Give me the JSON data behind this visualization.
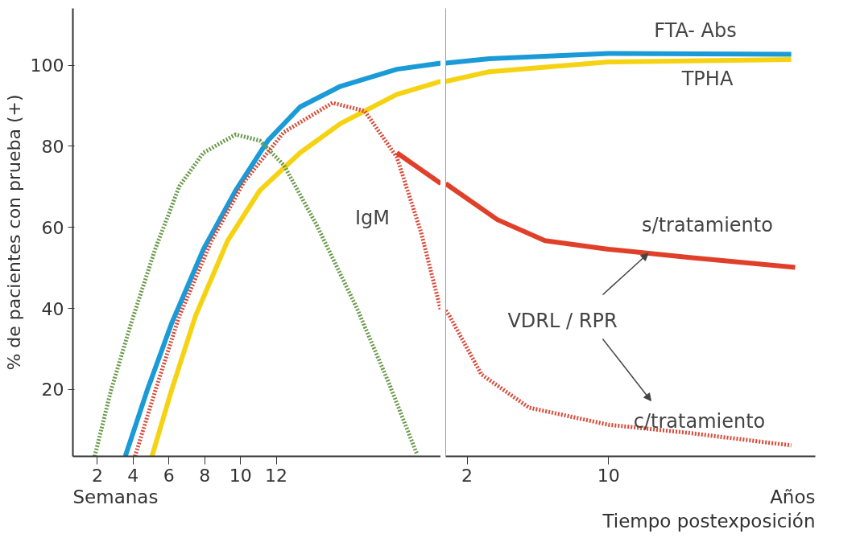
{
  "chart_data": [
    {
      "type": "line",
      "ylabel": "% de pacientes con prueba (+)",
      "xlim": [
        0.63,
        21.2
      ],
      "ylim": [
        3.5,
        114
      ],
      "xticks": [
        2,
        4,
        6,
        8,
        10,
        12
      ],
      "yticks": [
        20,
        40,
        60,
        80,
        100
      ],
      "series": [
        {
          "color": "#1a9bd7",
          "line_style": "solid",
          "x": [
            3.56,
            4.77,
            6.13,
            7.93,
            9.73,
            11.53,
            13.33,
            15.59,
            18.74,
            21.2
          ],
          "values": [
            3.5,
            19.6,
            36.1,
            54.6,
            69.1,
            81.4,
            89.7,
            94.8,
            99.0,
            100.5
          ]
        },
        {
          "color": "#f5d312",
          "line_style": "solid",
          "x": [
            5.05,
            6.13,
            7.48,
            9.28,
            11.08,
            13.33,
            15.59,
            18.74,
            21.2
          ],
          "values": [
            3.5,
            19.6,
            38.1,
            56.7,
            69.1,
            78.4,
            85.6,
            92.8,
            96.0
          ]
        },
        {
          "color": "#6a9a4a",
          "line_style": "dotted",
          "x": [
            1.85,
            2.75,
            3.87,
            5.23,
            6.58,
            7.93,
            9.73,
            11.08,
            12.43,
            14.23,
            16.49,
            18.29,
            19.86
          ],
          "values": [
            3.5,
            19.6,
            36.1,
            54.6,
            70.1,
            78.4,
            82.9,
            81.4,
            75.3,
            60.8,
            40.2,
            21.6,
            4.1
          ]
        },
        {
          "color": "#d94a3a",
          "line_style": "dotted",
          "x": [
            4.1,
            5.23,
            6.58,
            8.38,
            10.18,
            12.43,
            15.14,
            16.94,
            18.74,
            20.09,
            21.2
          ],
          "values": [
            3.5,
            19.6,
            38.1,
            56.7,
            71.1,
            83.5,
            90.7,
            88.7,
            77.3,
            58.8,
            39.5
          ]
        },
        {
          "color": "#e0402a",
          "line_style": "solid",
          "x": [
            18.74,
            21.2
          ],
          "values": [
            78.4,
            70.8
          ]
        }
      ],
      "annotations": [
        "IgM",
        "Semanas"
      ]
    },
    {
      "type": "line",
      "xlabel": "Tiempo postexposición",
      "xlim": [
        0.79,
        21.7
      ],
      "ylim": [
        3.5,
        114
      ],
      "xticks": [
        2,
        10
      ],
      "yticks": [
        20,
        40,
        60,
        80,
        100
      ],
      "tick_labels": "x",
      "series": [
        {
          "color": "#1a9bd7",
          "line_style": "solid",
          "x": [
            0.79,
            3.26,
            10.0,
            20.34
          ],
          "values": [
            100.5,
            101.6,
            102.9,
            102.7
          ]
        },
        {
          "color": "#f5d312",
          "line_style": "solid",
          "x": [
            0.79,
            3.26,
            10.0,
            20.34
          ],
          "values": [
            96.0,
            98.4,
            100.8,
            101.4
          ]
        },
        {
          "color": "#d94a3a",
          "line_style": "dotted",
          "x": [
            0.79,
            1.01,
            2.81,
            5.51,
            10.0,
            14.49,
            20.34
          ],
          "values": [
            39.5,
            38.1,
            23.7,
            15.5,
            11.3,
            9.3,
            6.2
          ]
        },
        {
          "color": "#e0402a",
          "line_style": "solid",
          "x": [
            0.79,
            1.01,
            3.71,
            6.4,
            10.0,
            14.49,
            20.56
          ],
          "values": [
            70.8,
            70.1,
            61.9,
            56.7,
            54.6,
            52.6,
            50.1
          ]
        }
      ],
      "annotations": [
        "FTA- Abs",
        "TPHA",
        "s/tratamiento",
        "c/tratamiento",
        {
          "text": "VDRL / RPR",
          "x": 12.25,
          "y": 53.6
        },
        "Años"
      ]
    }
  ]
}
